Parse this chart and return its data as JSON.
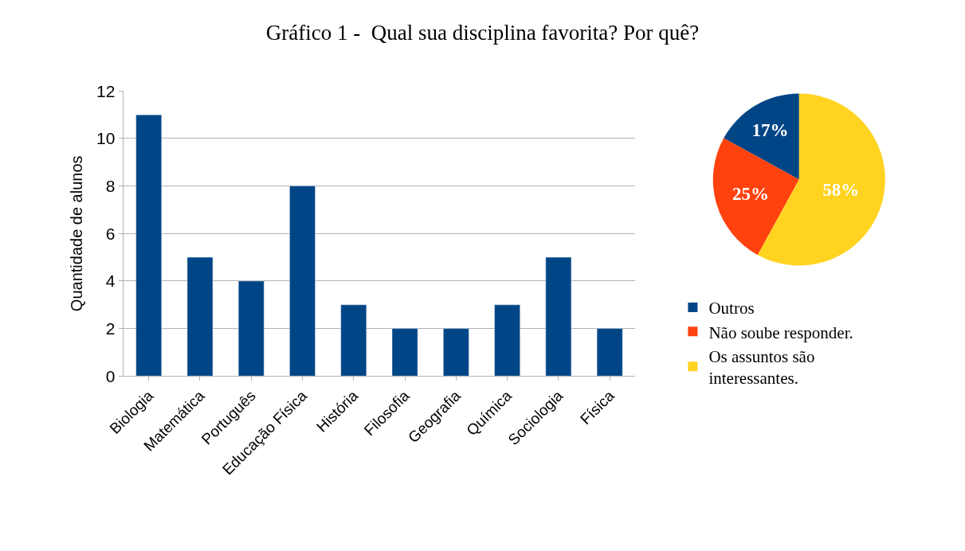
{
  "chart_data": [
    {
      "type": "bar",
      "title": "Gráfico 1 -  Qual sua disciplina favorita? Por quê?",
      "ylabel": "Quantidade de alunos",
      "categories": [
        "Biologia",
        "Matemática",
        "Português",
        "Educação Física",
        "História",
        "Filosofia",
        "Geografia",
        "Química",
        "Sociologia",
        "Física"
      ],
      "values": [
        11,
        5,
        4,
        8,
        3,
        2,
        2,
        3,
        5,
        2
      ],
      "color": "#004586",
      "ylim": [
        0,
        12
      ],
      "yticks": [
        0,
        2,
        4,
        6,
        8,
        10,
        12
      ],
      "grid": "y",
      "legend": false
    },
    {
      "type": "pie",
      "categories": [
        "Outros",
        "Não soube responder.",
        "Os assuntos são interessantes."
      ],
      "values": [
        17,
        25,
        58
      ],
      "value_labels": [
        "17%",
        "25%",
        "58%"
      ],
      "colors": [
        "#004586",
        "#ff420e",
        "#ffd320"
      ],
      "legend": "bottom"
    }
  ]
}
